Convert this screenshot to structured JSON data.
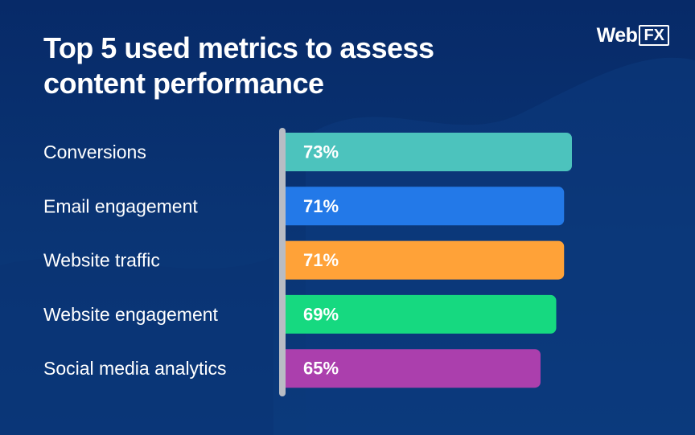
{
  "title": "Top 5 used metrics to assess content performance",
  "brand": {
    "name": "WebFX",
    "prefix": "Web",
    "suffix": "FX"
  },
  "colors": {
    "background": "#072a68",
    "axis": "#b8bcc4",
    "text": "#ffffff"
  },
  "chart_data": {
    "type": "bar",
    "orientation": "horizontal",
    "title": "Top 5 used metrics to assess content performance",
    "categories": [
      "Conversions",
      "Email engagement",
      "Website traffic",
      "Website engagement",
      "Social media analytics"
    ],
    "values": [
      73,
      71,
      71,
      69,
      65
    ],
    "value_labels": [
      "73%",
      "71%",
      "71%",
      "69%",
      "65%"
    ],
    "bar_colors": [
      "#4cc3bd",
      "#2379e8",
      "#ffa238",
      "#16d980",
      "#ab3fad"
    ],
    "unit": "%",
    "xlim": [
      0,
      100
    ],
    "grid": false
  }
}
